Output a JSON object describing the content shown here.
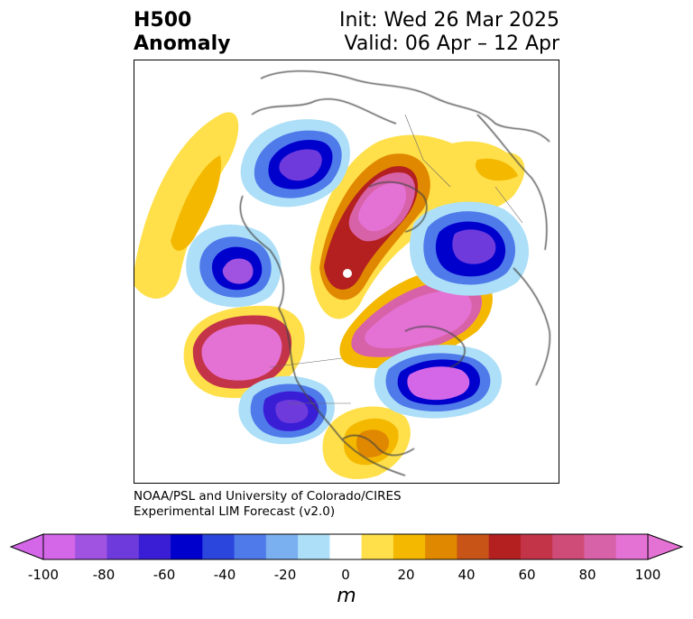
{
  "title": {
    "variable": "H500",
    "subtitle": "Anomaly",
    "init": "Init: Wed 26 Mar 2025",
    "valid": "Valid: 06 Apr – 12 Apr"
  },
  "credit": {
    "line1": "NOAA/PSL and University of Colorado/CIRES",
    "line2": "Experimental LIM Forecast (v2.0)"
  },
  "colorbar": {
    "unit": "m",
    "ticks": [
      "-100",
      "-80",
      "-60",
      "-40",
      "-20",
      "0",
      "20",
      "40",
      "60",
      "80",
      "100"
    ],
    "levels": [
      -100,
      -90,
      -80,
      -70,
      -60,
      -50,
      -40,
      -30,
      -20,
      -10,
      10,
      20,
      30,
      40,
      50,
      60,
      70,
      80,
      90,
      100
    ],
    "colors": [
      "#d466e8",
      "#a052e0",
      "#6e3adc",
      "#3a1ed6",
      "#0000cc",
      "#2a46dc",
      "#4f7aea",
      "#7bb0f0",
      "#addff8",
      "#ffffff",
      "#ffe04a",
      "#f4b800",
      "#e08800",
      "#c85418",
      "#b42020",
      "#c43448",
      "#cf4c78",
      "#d862a8",
      "#e472d4"
    ],
    "extend_min_color": "#d466e8",
    "extend_max_color": "#e472d4"
  }
}
